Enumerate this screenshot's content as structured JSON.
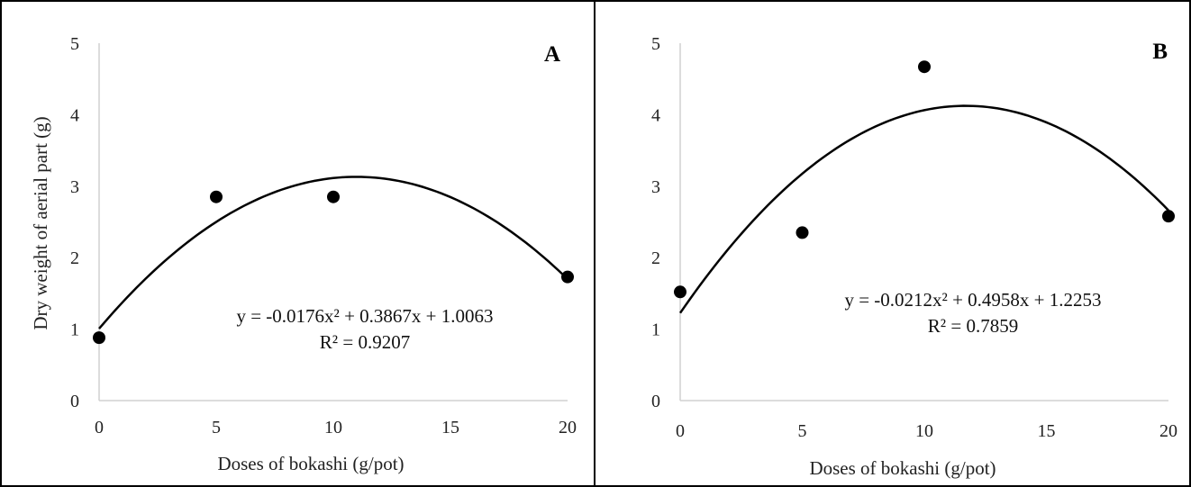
{
  "chart_data": [
    {
      "type": "scatter",
      "panel_label": "A",
      "x": [
        0,
        5,
        10,
        20
      ],
      "y": [
        0.88,
        2.85,
        2.85,
        1.73
      ],
      "xlabel": "Doses of bokashi (g/pot)",
      "ylabel": "Dry weight of aerial part (g)",
      "xlim": [
        0,
        20
      ],
      "ylim": [
        0,
        5
      ],
      "xticks": [
        "0",
        "5",
        "10",
        "15",
        "20"
      ],
      "yticks": [
        "0",
        "1",
        "2",
        "3",
        "4",
        "5"
      ],
      "grid": false,
      "trendline": {
        "type": "polynomial",
        "coefficients": [
          -0.0176,
          0.3867,
          1.0063
        ],
        "equation": "y = -0.0176x² + 0.3867x + 1.0063",
        "r2": "R² = 0.9207"
      }
    },
    {
      "type": "scatter",
      "panel_label": "B",
      "x": [
        0,
        5,
        10,
        20
      ],
      "y": [
        1.52,
        2.35,
        4.67,
        2.58
      ],
      "xlabel": "Doses of bokashi (g/pot)",
      "ylabel": "",
      "xlim": [
        0,
        20
      ],
      "ylim": [
        0,
        5
      ],
      "xticks": [
        "0",
        "5",
        "10",
        "15",
        "20"
      ],
      "yticks": [
        "0",
        "1",
        "2",
        "3",
        "4",
        "5"
      ],
      "grid": false,
      "trendline": {
        "type": "polynomial",
        "coefficients": [
          -0.0212,
          0.4958,
          1.2253
        ],
        "equation": "y = -0.0212x² + 0.4958x + 1.2253",
        "r2": "R² = 0.7859"
      }
    }
  ]
}
